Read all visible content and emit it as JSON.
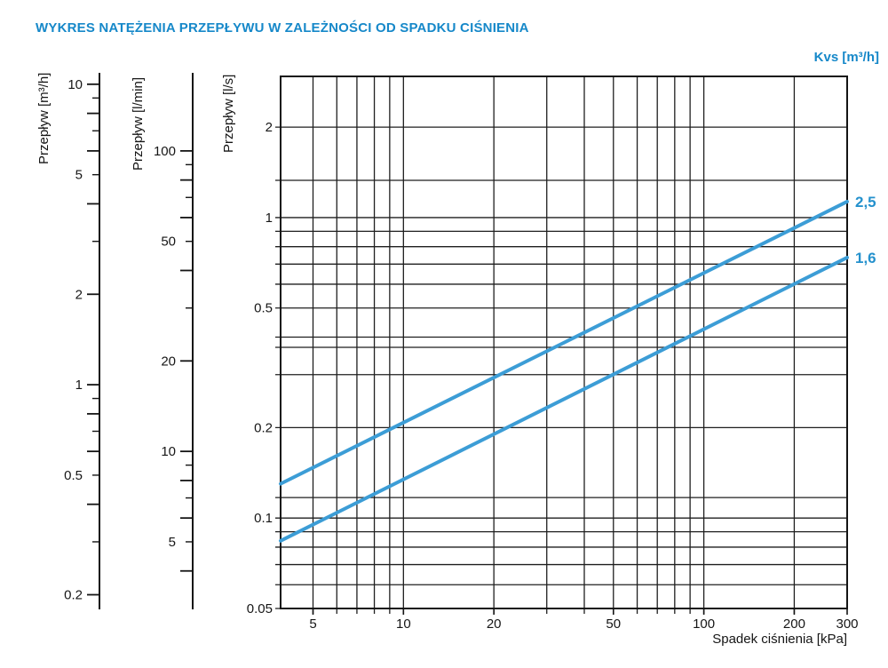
{
  "title": "WYKRES NATĘŻENIA PRZEPŁYWU W ZALEŻNOŚCI OD SPADKU CIŚNIENIA",
  "colors": {
    "title_blue": "#1688c9",
    "line_blue": "#3c9dd6",
    "series_label_blue": "#2491cd",
    "grid": "#1f1f1f",
    "axis_black": "#141414"
  },
  "chart_data": {
    "type": "line",
    "title": "WYKRES NATĘŻENIA PRZEPŁYWU W ZALEŻNOŚCI OD SPADKU CIŚNIENIA",
    "kvs_header": "Kvs [m³/h]",
    "xlabel": "Spadek ciśnienia [kPa]",
    "ylabel": "Przepływ [l/s]",
    "x_scale": "log",
    "y_scale": "log",
    "xlim": [
      3.9,
      300
    ],
    "ylim": [
      0.05,
      2.95
    ],
    "grid": "on",
    "x_ticks": [
      {
        "v": 5,
        "t": "5"
      },
      {
        "v": 10,
        "t": "10"
      },
      {
        "v": 20,
        "t": "20"
      },
      {
        "v": 50,
        "t": "50"
      },
      {
        "v": 100,
        "t": "100"
      },
      {
        "v": 200,
        "t": "200"
      },
      {
        "v": 300,
        "t": "300"
      }
    ],
    "x_gridlines": [
      5,
      6,
      7,
      8,
      9,
      10,
      20,
      30,
      40,
      50,
      60,
      70,
      80,
      90,
      100,
      200
    ],
    "y_ticks": [
      {
        "v": 2,
        "t": "2"
      },
      {
        "v": 1,
        "t": "1"
      },
      {
        "v": 0.5,
        "t": "0.5"
      },
      {
        "v": 0.2,
        "t": "0.2"
      },
      {
        "v": 0.1,
        "t": "0.1"
      },
      {
        "v": 0.05,
        "t": "0.05"
      }
    ],
    "y_gridlines": [
      2,
      1.33,
      1,
      0.9,
      0.8,
      0.7,
      0.6,
      0.5,
      0.4,
      0.37,
      0.3,
      0.2,
      0.117,
      0.1,
      0.09,
      0.08,
      0.07,
      0.06,
      0.05
    ],
    "series": [
      {
        "label": "2,5",
        "kvs_m3h": 2.5,
        "points": [
          {
            "dp_kpa": 3.9,
            "flow_ls": 0.13
          },
          {
            "dp_kpa": 300,
            "flow_ls": 1.13
          }
        ]
      },
      {
        "label": "1,6",
        "kvs_m3h": 1.6,
        "points": [
          {
            "dp_kpa": 3.9,
            "flow_ls": 0.084
          },
          {
            "dp_kpa": 300,
            "flow_ls": 0.736
          }
        ]
      }
    ],
    "secondary_y_axes": [
      {
        "label": "Przepływ [m³/h]",
        "unit": "m³/h",
        "per_ls": 3.6,
        "tick_labels": [
          {
            "v": 10,
            "t": "10"
          },
          {
            "v": 5,
            "t": "5"
          },
          {
            "v": 2,
            "t": "2"
          },
          {
            "v": 1,
            "t": "1"
          },
          {
            "v": 0.5,
            "t": "0.5"
          },
          {
            "v": 0.2,
            "t": "0.2"
          }
        ],
        "major_ticks": [
          10,
          8,
          6,
          4,
          2,
          1,
          0.8,
          0.6,
          0.4,
          0.2
        ],
        "minor_ticks": [
          9,
          7,
          5,
          3,
          0.9,
          0.7,
          0.5,
          0.3
        ]
      },
      {
        "label": "Przepływ [l/min]",
        "unit": "l/min",
        "per_ls": 60,
        "tick_labels": [
          {
            "v": 100,
            "t": "100"
          },
          {
            "v": 50,
            "t": "50"
          },
          {
            "v": 20,
            "t": "20"
          },
          {
            "v": 10,
            "t": "10"
          },
          {
            "v": 5,
            "t": "5"
          }
        ],
        "major_ticks": [
          100,
          80,
          60,
          40,
          20,
          10,
          8,
          6,
          4
        ],
        "minor_ticks": [
          90,
          70,
          50,
          30,
          9,
          7,
          5
        ]
      }
    ]
  }
}
